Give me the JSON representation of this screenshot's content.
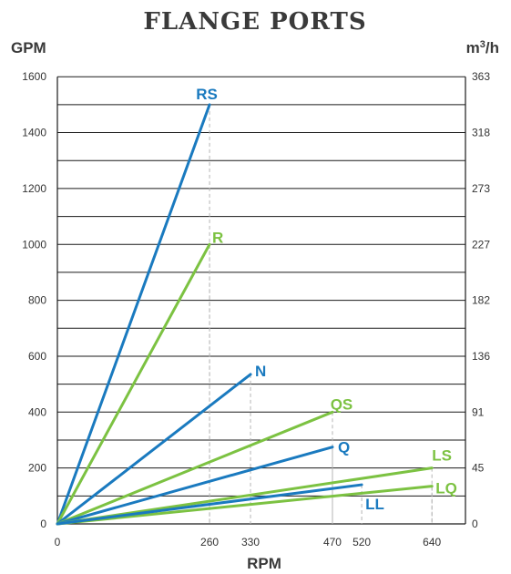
{
  "chart_data": {
    "type": "line",
    "title": "FLANGE PORTS",
    "xlabel": "RPM",
    "ylabel": "GPM",
    "y2label": "m",
    "y2label_sup": "3",
    "y2label_tail": "/h",
    "xlim": [
      0,
      700
    ],
    "ylim": [
      0,
      1600
    ],
    "x_ticks": [
      "0",
      "260",
      "330",
      "470",
      "520",
      "640"
    ],
    "x_tick_values": [
      0,
      260,
      330,
      470,
      520,
      640
    ],
    "y_ticks": [
      "0",
      "200",
      "400",
      "600",
      "800",
      "1000",
      "1200",
      "1400",
      "1600"
    ],
    "y_tick_values": [
      0,
      200,
      400,
      600,
      800,
      1000,
      1200,
      1400,
      1600
    ],
    "y2_ticks": [
      "0",
      "45",
      "91",
      "136",
      "182",
      "227",
      "273",
      "318",
      "363"
    ],
    "grid": true,
    "colors": {
      "blue": "#1a7abf",
      "green": "#7cc242",
      "grid": "#1a1a1a",
      "dash": "#b5b5b5"
    },
    "series": [
      {
        "name": "RS",
        "color": "#1a7abf",
        "x": [
          0,
          260
        ],
        "y": [
          0,
          1500
        ]
      },
      {
        "name": "R",
        "color": "#7cc242",
        "x": [
          0,
          260
        ],
        "y": [
          0,
          1000
        ]
      },
      {
        "name": "N",
        "color": "#1a7abf",
        "x": [
          0,
          330
        ],
        "y": [
          0,
          535
        ]
      },
      {
        "name": "QS",
        "color": "#7cc242",
        "x": [
          0,
          470
        ],
        "y": [
          0,
          400
        ]
      },
      {
        "name": "Q",
        "color": "#1a7abf",
        "x": [
          0,
          470
        ],
        "y": [
          0,
          275
        ]
      },
      {
        "name": "LS",
        "color": "#7cc242",
        "x": [
          0,
          640
        ],
        "y": [
          0,
          200
        ]
      },
      {
        "name": "LQ",
        "color": "#7cc242",
        "x": [
          0,
          640
        ],
        "y": [
          0,
          135
        ]
      },
      {
        "name": "LL",
        "color": "#1a7abf",
        "x": [
          0,
          520
        ],
        "y": [
          0,
          140
        ]
      }
    ]
  }
}
